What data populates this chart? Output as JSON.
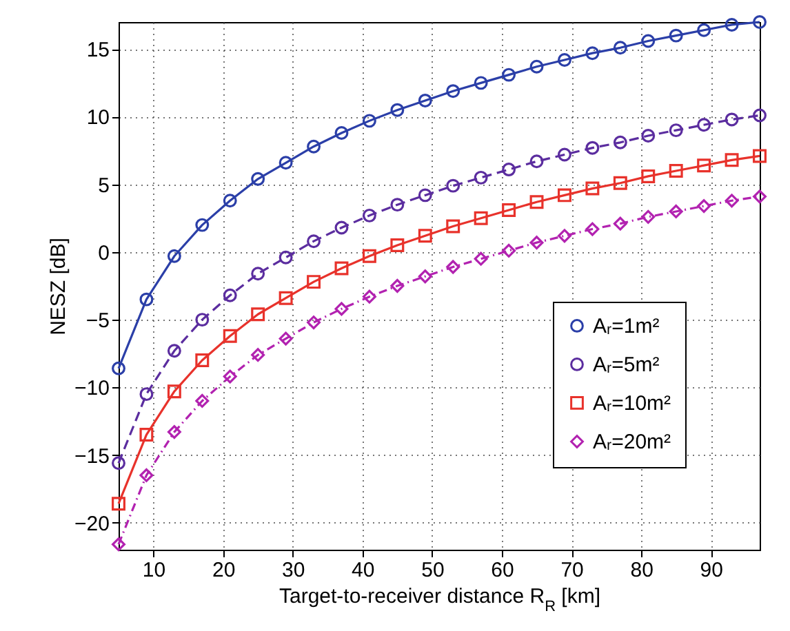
{
  "chart_data": {
    "type": "line",
    "xlabel": "Target-to-receiver distance R$_{R}$ [km]",
    "ylabel": "NESZ [dB]",
    "x": [
      5,
      9,
      13,
      17,
      21,
      25,
      29,
      33,
      37,
      41,
      45,
      49,
      53,
      57,
      61,
      65,
      69,
      73,
      77,
      81,
      85,
      89,
      93,
      97
    ],
    "xlim": [
      5,
      97
    ],
    "xticks": [
      10,
      20,
      30,
      40,
      50,
      60,
      70,
      80,
      90
    ],
    "ylim": [
      -22,
      17
    ],
    "yticks": [
      -20,
      -15,
      -10,
      -5,
      0,
      5,
      10,
      15
    ],
    "grid": true,
    "legend": "right",
    "series": [
      {
        "name": "Aᵣ=1m²",
        "color": "#2b3fa8",
        "marker": "circle",
        "line_style": "solid",
        "values": [
          -8.6,
          -3.5,
          -0.3,
          2.0,
          3.8,
          5.4,
          6.6,
          7.8,
          8.8,
          9.7,
          10.5,
          11.2,
          11.9,
          12.5,
          13.1,
          13.7,
          14.2,
          14.7,
          15.1,
          15.6,
          16.0,
          16.4,
          16.8,
          17.0
        ]
      },
      {
        "name": "Aᵣ=5m²",
        "color": "#5b2d9f",
        "marker": "circle",
        "line_style": "dashed",
        "values": [
          -15.6,
          -10.5,
          -7.3,
          -5.0,
          -3.2,
          -1.6,
          -0.4,
          0.8,
          1.8,
          2.7,
          3.5,
          4.2,
          4.9,
          5.5,
          6.1,
          6.7,
          7.2,
          7.7,
          8.1,
          8.6,
          9.0,
          9.4,
          9.8,
          10.1
        ]
      },
      {
        "name": "Aᵣ=10m²",
        "color": "#e8322b",
        "marker": "square",
        "line_style": "solid",
        "values": [
          -18.6,
          -13.5,
          -10.3,
          -8.0,
          -6.2,
          -4.6,
          -3.4,
          -2.2,
          -1.2,
          -0.3,
          0.5,
          1.2,
          1.9,
          2.5,
          3.1,
          3.7,
          4.2,
          4.7,
          5.1,
          5.6,
          6.0,
          6.4,
          6.8,
          7.1
        ]
      },
      {
        "name": "Aᵣ=20m²",
        "color": "#b222b0",
        "marker": "diamond",
        "line_style": "dotted",
        "values": [
          -21.6,
          -16.5,
          -13.3,
          -11.0,
          -9.2,
          -7.6,
          -6.4,
          -5.2,
          -4.2,
          -3.3,
          -2.5,
          -1.8,
          -1.1,
          -0.5,
          0.1,
          0.7,
          1.2,
          1.7,
          2.1,
          2.6,
          3.0,
          3.4,
          3.8,
          4.1
        ]
      }
    ]
  }
}
